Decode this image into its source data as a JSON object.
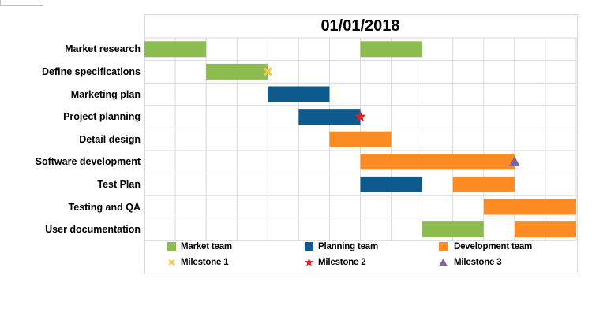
{
  "chart_data": {
    "type": "gantt",
    "title": "01/01/2018",
    "tasks": [
      "Market research",
      "Define specifications",
      "Marketing plan",
      "Project planning",
      "Detail design",
      "Software development",
      "Test Plan",
      "Testing and QA",
      "User documentation"
    ],
    "x_range": [
      0,
      14
    ],
    "bars": [
      {
        "task": 0,
        "start": 0,
        "end": 2,
        "team": 0
      },
      {
        "task": 0,
        "start": 7,
        "end": 9,
        "team": 0
      },
      {
        "task": 1,
        "start": 2,
        "end": 4,
        "team": 0
      },
      {
        "task": 2,
        "start": 4,
        "end": 6,
        "team": 1
      },
      {
        "task": 3,
        "start": 5,
        "end": 7,
        "team": 1
      },
      {
        "task": 4,
        "start": 6,
        "end": 8,
        "team": 2
      },
      {
        "task": 5,
        "start": 7,
        "end": 12,
        "team": 2
      },
      {
        "task": 6,
        "start": 7,
        "end": 9,
        "team": 1
      },
      {
        "task": 6,
        "start": 10,
        "end": 12,
        "team": 2
      },
      {
        "task": 7,
        "start": 11,
        "end": 14,
        "team": 2
      },
      {
        "task": 8,
        "start": 9,
        "end": 11,
        "team": 0
      },
      {
        "task": 8,
        "start": 12,
        "end": 14,
        "team": 2
      }
    ],
    "milestones": [
      {
        "task": 1,
        "at": 4,
        "kind": 0
      },
      {
        "task": 3,
        "at": 7,
        "kind": 1
      },
      {
        "task": 5,
        "at": 12,
        "kind": 2
      }
    ],
    "teams": [
      {
        "name": "Market team",
        "color": "#8cbc4f"
      },
      {
        "name": "Planning team",
        "color": "#0f5a8c"
      },
      {
        "name": "Development team",
        "color": "#fb8b22"
      }
    ],
    "milestone_types": [
      {
        "name": "Milestone 1",
        "shape": "cross-icon",
        "color": "#f5c842"
      },
      {
        "name": "Milestone 2",
        "shape": "star-icon",
        "color": "#e81b23"
      },
      {
        "name": "Milestone 3",
        "shape": "triangle-icon",
        "color": "#8064a2"
      }
    ],
    "grid": true,
    "legend_position": "bottom"
  }
}
